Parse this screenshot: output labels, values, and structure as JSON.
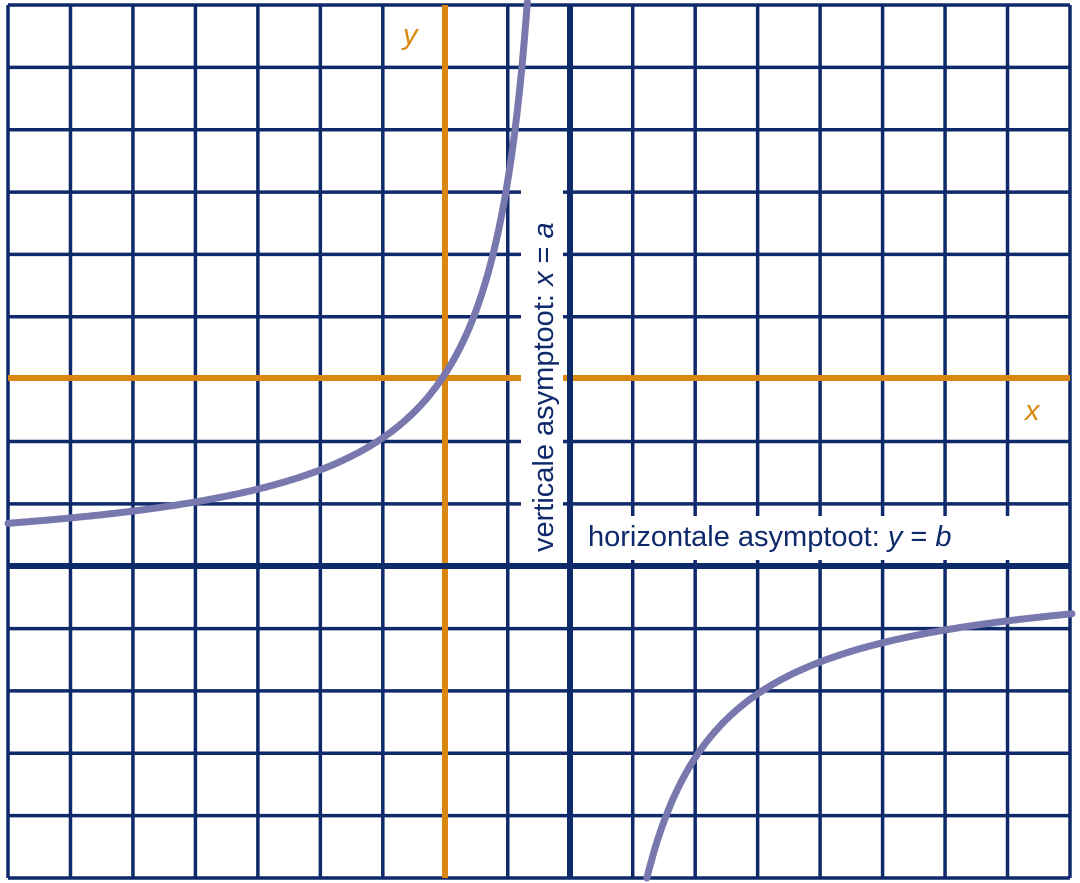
{
  "axis_labels": {
    "y": "y",
    "x": "x"
  },
  "vertical_asymptote": {
    "text": "verticale asymptoot:",
    "variable": "x",
    "equals": "=",
    "constant": "a"
  },
  "horizontal_asymptote": {
    "text": "horizontale asymptoot:",
    "variable": "y",
    "equals": "=",
    "constant": "b"
  }
}
